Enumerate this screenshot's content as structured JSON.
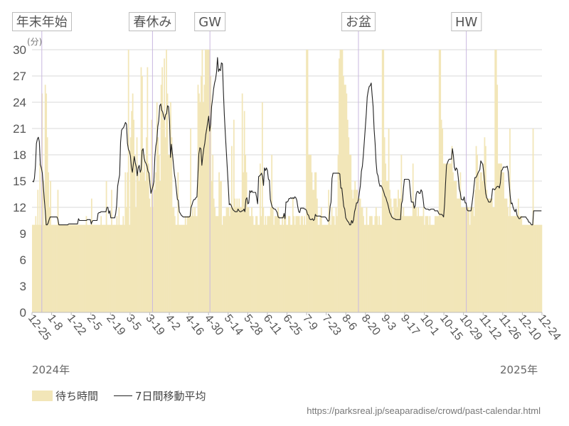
{
  "chart_data": {
    "type": "bar",
    "title": "",
    "unit_label": "(分)",
    "ylim": [
      0,
      30
    ],
    "yticks": [
      0,
      3,
      6,
      9,
      12,
      15,
      18,
      21,
      24,
      27,
      30
    ],
    "x_start": "2024-12-25",
    "x_end": "2025-12-24",
    "xtick_labels": [
      "12-25",
      "1-8",
      "1-22",
      "2-5",
      "2-19",
      "3-5",
      "3-19",
      "4-2",
      "4-16",
      "4-30",
      "5-14",
      "5-28",
      "6-11",
      "6-25",
      "7-9",
      "7-23",
      "8-6",
      "8-20",
      "9-3",
      "9-17",
      "10-1",
      "10-15",
      "10-29",
      "11-12",
      "11-26",
      "12-10",
      "12-24"
    ],
    "years": {
      "start": "2024年",
      "end": "2025年"
    },
    "events": [
      {
        "label": "年末年始",
        "date": "2025-01-01"
      },
      {
        "label": "春休み",
        "date": "2025-03-21"
      },
      {
        "label": "GW",
        "date": "2025-05-01"
      },
      {
        "label": "お盆",
        "date": "2025-08-15"
      },
      {
        "label": "HW",
        "date": "2025-10-31"
      }
    ],
    "series": [
      {
        "name": "待ち時間",
        "type": "bar",
        "color": "#f2e6b8",
        "values": [
          10,
          10,
          10,
          11,
          10,
          14,
          10,
          17,
          10,
          25,
          15,
          10,
          26,
          25,
          20,
          16,
          12,
          15,
          10,
          10,
          10,
          10,
          10,
          10,
          14,
          10,
          10,
          10,
          10,
          10,
          10,
          10,
          10,
          10,
          10,
          10,
          10,
          10,
          10,
          10,
          10,
          10,
          10,
          10,
          10,
          10,
          10,
          10,
          10,
          10,
          10,
          11,
          10,
          10,
          10,
          10,
          13,
          10,
          10,
          10,
          10,
          10,
          10,
          10,
          10,
          11,
          10,
          10,
          10,
          10,
          15,
          10,
          10,
          10,
          10,
          14,
          10,
          10,
          10,
          10,
          11,
          10,
          12,
          10,
          10,
          10,
          11,
          10,
          16,
          12,
          16,
          30,
          10,
          20,
          23,
          25,
          22,
          18,
          12,
          20,
          16,
          15,
          16,
          28,
          27,
          16,
          18,
          15,
          20,
          28,
          17,
          13,
          12,
          22,
          12,
          15,
          14,
          16,
          24,
          20,
          18,
          15,
          26,
          28,
          22,
          29,
          20,
          30,
          25,
          18,
          18,
          24,
          20,
          12,
          12,
          11,
          10,
          10,
          16,
          10,
          10,
          10,
          10,
          10,
          10,
          11,
          10,
          11,
          11,
          11,
          21,
          11,
          12,
          11,
          12,
          11,
          11,
          26,
          25,
          24,
          27,
          30,
          24,
          26,
          30,
          30,
          30,
          30,
          30,
          27,
          15,
          18,
          13,
          12,
          11,
          11,
          11,
          16,
          15,
          15,
          10,
          11,
          11,
          11,
          12,
          12,
          12,
          11,
          12,
          19,
          12,
          22,
          13,
          12,
          13,
          12,
          13,
          12,
          12,
          25,
          16,
          23,
          18,
          16,
          12,
          12,
          11,
          11,
          12,
          11,
          10,
          10,
          11,
          11,
          10,
          10,
          17,
          11,
          24,
          12,
          10,
          11,
          10,
          11,
          11,
          11,
          12,
          18,
          12,
          10,
          11,
          11,
          11,
          12,
          11,
          10,
          10,
          11,
          10,
          11,
          11,
          10,
          10,
          11,
          11,
          10,
          10,
          13,
          11,
          10,
          11,
          11,
          11,
          11,
          10,
          11,
          11,
          10,
          11,
          10,
          30,
          30,
          18,
          18,
          18,
          16,
          14,
          14,
          16,
          16,
          13,
          10,
          10,
          11,
          12,
          10,
          10,
          10,
          10,
          10,
          10,
          14,
          11,
          10,
          12,
          11,
          11,
          10,
          12,
          11,
          18,
          29,
          30,
          30,
          30,
          27,
          26,
          26,
          25,
          22,
          20,
          18,
          18,
          14,
          13,
          14,
          15,
          14,
          14,
          13,
          13,
          13,
          12,
          12,
          11,
          10,
          10,
          12,
          10,
          10,
          11,
          11,
          11,
          10,
          10,
          11,
          12,
          11,
          10,
          11,
          10,
          10,
          30,
          30,
          20,
          17,
          15,
          15,
          21,
          14,
          13,
          12,
          11,
          13,
          13,
          13,
          12,
          14,
          13,
          13,
          18,
          11,
          12,
          11,
          11,
          11,
          11,
          11,
          11,
          11,
          11,
          17,
          12,
          12,
          12,
          11,
          12,
          11,
          11,
          11,
          11,
          12,
          10,
          11,
          11,
          11,
          10,
          11,
          10,
          10,
          10,
          10,
          11,
          11,
          11,
          11,
          30,
          30,
          22,
          21,
          17,
          17,
          17,
          17,
          17,
          17,
          17,
          17,
          19,
          16,
          15,
          15,
          15,
          13,
          13,
          13,
          16,
          12,
          12,
          12,
          12,
          12,
          12,
          12,
          12,
          10,
          12,
          12,
          12,
          11,
          14,
          19,
          18,
          16,
          14,
          16,
          16,
          15,
          17,
          20,
          19,
          14,
          13,
          13,
          13,
          13,
          13,
          12,
          12,
          30,
          30,
          26,
          17,
          17,
          17,
          17,
          16,
          16,
          13,
          13,
          13,
          12,
          11,
          21,
          11,
          11,
          11,
          11,
          11,
          11,
          11,
          13,
          11,
          11,
          11,
          10,
          10,
          10,
          10,
          10,
          10,
          10,
          10,
          10,
          10,
          21,
          10,
          10,
          10,
          10,
          10,
          10,
          10,
          10
        ]
      },
      {
        "name": "7日間移動平均",
        "type": "line",
        "color": "#222222",
        "values": [
          15,
          14.9,
          15.3,
          16.7,
          19.3,
          19.8,
          20,
          19.5,
          16.9,
          16.5,
          15.9,
          14.6,
          13,
          11.6,
          10,
          10,
          10.2,
          10.6,
          10.9,
          10.9,
          10.9,
          10.9,
          10.9,
          10.9,
          10.9,
          10.9,
          10.6,
          10,
          10,
          10,
          10,
          10,
          10,
          10,
          10,
          10,
          10,
          10.1,
          10.1,
          10.1,
          10.1,
          10.1,
          10.1,
          10.1,
          10.1,
          10.1,
          10.1,
          10.7,
          10.5,
          10.5,
          10.5,
          10.5,
          10.5,
          10.5,
          10.5,
          10.5,
          10.6,
          10.6,
          10.6,
          10.6,
          10.1,
          10.4,
          10.5,
          10.5,
          10.5,
          10.5,
          10.5,
          11.3,
          11.4,
          11.4,
          11.5,
          11.5,
          11.5,
          11.5,
          11.5,
          11.5,
          12,
          12,
          11.3,
          11.6,
          10.8,
          10.8,
          10.8,
          10.8,
          10.8,
          11.3,
          12.2,
          14.4,
          15.1,
          15.7,
          19.4,
          20.8,
          21,
          21.1,
          21.4,
          21.7,
          21.5,
          19.3,
          18.6,
          18.4,
          17.9,
          16.6,
          16,
          16.9,
          17.8,
          17.1,
          16.6,
          15.6,
          16.5,
          16.8,
          16,
          16.3,
          18.5,
          18.7,
          17.6,
          17.2,
          17,
          16.7,
          16.1,
          15.9,
          14.7,
          13.6,
          14,
          14.4,
          14.9,
          17.7,
          19,
          19.6,
          21.2,
          21.9,
          23.6,
          23.8,
          23.1,
          22.9,
          22.4,
          22,
          22.6,
          22.7,
          23.6,
          23.5,
          21.8,
          17.7,
          19.2,
          18.1,
          16.9,
          15.8,
          15.1,
          14,
          12.9,
          12.8,
          11.5,
          11.3,
          11.1,
          11,
          10.9,
          10.9,
          10.9,
          10.9,
          10.9,
          10.9,
          10.9,
          11,
          12,
          12.3,
          12.7,
          12.9,
          12.9,
          13.1,
          13.2,
          15.8,
          18.1,
          18.8,
          18.7,
          16.8,
          17.8,
          18.7,
          19.3,
          20.3,
          21,
          21.7,
          22.4,
          20.7,
          21.5,
          23.5,
          24.4,
          25.5,
          26.2,
          26.6,
          27.4,
          29.1,
          27.5,
          27.8,
          27.6,
          28.5,
          28.4,
          25.4,
          22.6,
          20.4,
          18.4,
          16.4,
          14.5,
          12.3,
          12.4,
          12.2,
          11.9,
          11.7,
          11.6,
          11.5,
          11.5,
          11.5,
          11.8,
          11.6,
          11.5,
          11.5,
          11.6,
          11.6,
          11.8,
          11.5,
          12.9,
          13.1,
          12.4,
          12.5,
          13.9,
          13.7,
          13.9,
          13.7,
          13.7,
          13.7,
          13.7,
          13.1,
          12.4,
          15.5,
          15.6,
          15.7,
          15.9,
          15.5,
          14.5,
          16.5,
          16.2,
          16.5,
          16.2,
          15.2,
          15.1,
          12.9,
          12.4,
          12,
          11.9,
          11.8,
          11.8,
          11.6,
          11.4,
          10.9,
          10.8,
          10.8,
          10.8,
          10.8,
          10.8,
          11.3,
          10.7,
          12.6,
          12.6,
          12.7,
          13,
          13,
          13.1,
          13,
          13.1,
          13,
          13.2,
          13.1,
          12.8,
          12.1,
          11.5,
          11.4,
          11.9,
          11.9,
          11.9,
          11.9,
          11.8,
          11.8,
          11.6,
          11.2,
          11.1,
          10.7,
          10.6,
          10.6,
          10.7,
          10.5,
          10.6,
          11.2,
          11,
          11,
          11,
          11,
          11,
          10.9,
          10.9,
          10.9,
          10.9,
          10.9,
          10.8,
          10.6,
          10.4,
          10.5,
          12.1,
          12.6,
          15.3,
          15.9,
          15.9,
          15.9,
          15.9,
          15.9,
          15.9,
          15.9,
          15.8,
          14.2,
          14.2,
          13.2,
          12.1,
          11.8,
          10.8,
          10.6,
          10.4,
          10.3,
          10,
          10,
          10.5,
          10.2,
          10.6,
          11.5,
          11.9,
          12.5,
          12.5,
          12.9,
          13.7,
          14.5,
          16.1,
          16.7,
          17.9,
          19.5,
          21.1,
          22.7,
          24.6,
          25.3,
          25.8,
          25.9,
          26.2,
          24.8,
          23.5,
          20.9,
          19.3,
          17.2,
          15.9,
          15.6,
          14.8,
          14.4,
          14.5,
          14.3,
          14,
          13.7,
          13.3,
          13.1,
          12.7,
          12.4,
          11.9,
          11.4,
          11.2,
          10.9,
          10.8,
          10.7,
          10.7,
          10.6,
          10.6,
          10.6,
          10.6,
          10.6,
          10.6,
          12.4,
          12.8,
          14.2,
          15.2,
          15.2,
          15.2,
          15.2,
          15.2,
          15.1,
          13.8,
          12.6,
          12.6,
          12.6,
          11.9,
          12.2,
          13.5,
          13.8,
          13.8,
          13.6,
          13.6,
          14,
          13.8,
          13,
          12,
          11.9,
          11.8,
          11.8,
          11.8,
          11.7,
          11.7,
          11.8,
          11.8,
          11.8,
          11.8,
          11.6,
          11.6,
          11.6,
          11.6,
          11.3,
          11.2,
          11.2,
          11.2,
          11.1,
          10.9,
          12.4,
          14.7,
          16.8,
          17.1,
          17.4,
          17.5,
          17.5,
          17.5,
          18.7,
          17.9,
          16.6,
          16.2,
          16.5,
          16.3,
          15.4,
          14.1,
          13.7,
          12.9,
          12.9,
          12.8,
          13.2,
          12.5,
          12.5,
          11.7,
          11.6,
          11.6,
          11.6,
          11.6,
          12.4,
          13.3,
          14.4,
          15.4,
          15.4,
          15.6,
          15.9,
          16.1,
          16.3,
          17.3,
          17.1,
          16.9,
          16,
          14.8,
          13.6,
          13.1,
          12.9,
          12.6,
          12.6,
          12.6,
          13,
          14.1,
          14.1,
          14,
          14.1,
          14.3,
          14.4,
          14.4,
          14.2,
          14.8,
          16.2,
          16.3,
          16.6,
          16.6,
          16.6,
          16.6,
          16.7,
          16.1,
          14.7,
          13.3,
          12.4,
          12.5,
          12,
          11.7,
          11.5,
          11.8,
          11.1,
          10.9,
          10.7,
          10.7,
          10.9,
          10.9,
          10.9,
          10.9,
          10.9,
          10.9,
          10.7,
          10.6,
          10.3,
          10.3,
          10.1,
          10,
          10,
          11.6,
          11.6,
          11.6,
          11.6,
          11.6,
          11.6,
          11.6,
          11.6,
          11.6
        ]
      }
    ],
    "legend": {
      "position": "bottom-left"
    },
    "grid": true
  },
  "source_url": "https://parksreal.jp/seaparadise/crowd/past-calendar.html"
}
